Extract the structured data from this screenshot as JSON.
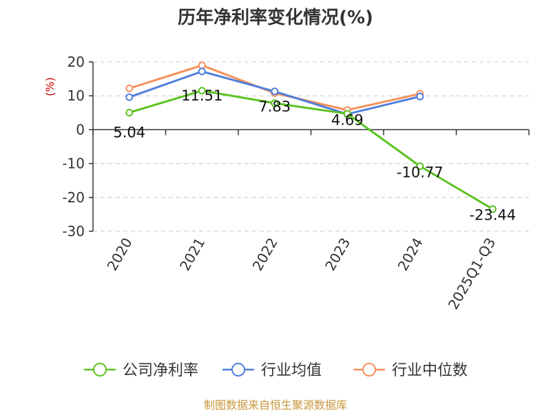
{
  "chart_data": {
    "type": "line",
    "title": "历年净利率变化情况(%)",
    "ylabel": "(%)",
    "xlabel": "",
    "categories": [
      "2020",
      "2021",
      "2022",
      "2023",
      "2024",
      "2025Q1-Q3"
    ],
    "ylim": [
      -30,
      20
    ],
    "yticks": [
      20,
      10,
      0,
      -10,
      -20,
      -30
    ],
    "grid": true,
    "legend_position": "bottom",
    "series": [
      {
        "name": "公司净利率",
        "color": "#5bc21f",
        "values": [
          5.04,
          11.51,
          7.83,
          4.69,
          -10.77,
          -23.44
        ],
        "labels": [
          "5.04",
          "11.51",
          "7.83",
          "4.69",
          "-10.77",
          "-23.44"
        ]
      },
      {
        "name": "行业均值",
        "color": "#4f7fdb",
        "values": [
          9.6,
          17.2,
          11.3,
          4.6,
          9.8,
          null
        ]
      },
      {
        "name": "行业中位数",
        "color": "#f5905a",
        "values": [
          12.2,
          19.0,
          10.8,
          5.8,
          10.6,
          null
        ]
      }
    ]
  },
  "footer": {
    "source": "制图数据来自恒生聚源数据库"
  }
}
